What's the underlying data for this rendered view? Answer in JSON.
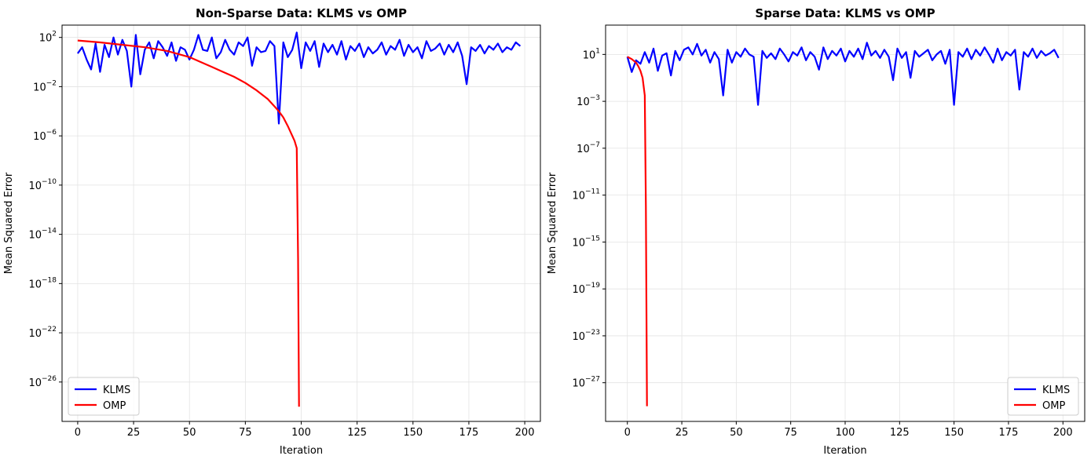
{
  "chart_data": [
    {
      "type": "line",
      "title": "Non-Sparse Data: KLMS vs OMP",
      "xlabel": "Iteration",
      "ylabel": "Mean Squared Error",
      "yscale": "log",
      "xlim": [
        -7,
        207
      ],
      "ylim_exp": [
        -29.2,
        3.0
      ],
      "xticks": [
        0,
        25,
        50,
        75,
        100,
        125,
        150,
        175,
        200
      ],
      "yticks_exp": [
        2,
        -2,
        -6,
        -10,
        -14,
        -18,
        -22,
        -26
      ],
      "grid": true,
      "legend": "lower left",
      "series": [
        {
          "name": "KLMS",
          "color": "#0000ff",
          "x": [
            0,
            2,
            4,
            6,
            8,
            10,
            12,
            14,
            16,
            18,
            20,
            22,
            24,
            26,
            28,
            30,
            32,
            34,
            36,
            38,
            40,
            42,
            44,
            46,
            48,
            50,
            52,
            54,
            56,
            58,
            60,
            62,
            64,
            66,
            68,
            70,
            72,
            74,
            76,
            78,
            80,
            82,
            84,
            86,
            88,
            90,
            92,
            94,
            96,
            98,
            100,
            102,
            104,
            106,
            108,
            110,
            112,
            114,
            116,
            118,
            120,
            122,
            124,
            126,
            128,
            130,
            132,
            134,
            136,
            138,
            140,
            142,
            144,
            146,
            148,
            150,
            152,
            154,
            156,
            158,
            160,
            162,
            164,
            166,
            168,
            170,
            172,
            174,
            176,
            178,
            180,
            182,
            184,
            186,
            188,
            190,
            192,
            194,
            196,
            198
          ],
          "y_log10": [
            0.7,
            1.2,
            0.2,
            -0.6,
            1.5,
            -0.8,
            1.4,
            0.4,
            2.0,
            0.6,
            1.8,
            0.9,
            -2.0,
            2.2,
            -1.0,
            1.0,
            1.6,
            0.3,
            1.7,
            1.2,
            0.5,
            1.6,
            0.1,
            1.2,
            1.0,
            0.2,
            1.0,
            2.2,
            1.0,
            0.9,
            2.0,
            0.3,
            0.8,
            1.8,
            1.0,
            0.6,
            1.6,
            1.3,
            2.0,
            -0.3,
            1.2,
            0.8,
            0.9,
            1.7,
            1.3,
            -5.0,
            1.6,
            0.4,
            1.0,
            2.4,
            -0.5,
            1.6,
            0.9,
            1.7,
            -0.4,
            1.5,
            0.8,
            1.4,
            0.6,
            1.7,
            0.2,
            1.3,
            0.9,
            1.5,
            0.4,
            1.2,
            0.7,
            1.0,
            1.6,
            0.6,
            1.3,
            1.0,
            1.8,
            0.5,
            1.4,
            0.8,
            1.2,
            0.3,
            1.7,
            0.9,
            1.1,
            1.5,
            0.6,
            1.4,
            0.8,
            1.6,
            0.5,
            -1.8,
            1.2,
            0.9,
            1.4,
            0.7,
            1.3,
            1.0,
            1.5,
            0.8,
            1.2,
            1.0,
            1.6,
            1.3
          ]
        },
        {
          "name": "OMP",
          "color": "#ff0000",
          "x": [
            0,
            10,
            20,
            30,
            40,
            50,
            55,
            60,
            65,
            70,
            75,
            80,
            85,
            88,
            90,
            92,
            94,
            95,
            96,
            97,
            98,
            98.6,
            99
          ],
          "y_log10": [
            1.75,
            1.6,
            1.4,
            1.2,
            0.9,
            0.4,
            0.0,
            -0.4,
            -0.8,
            -1.2,
            -1.7,
            -2.3,
            -3.0,
            -3.6,
            -4.0,
            -4.5,
            -5.2,
            -5.6,
            -6.0,
            -6.4,
            -7.0,
            -16.0,
            -28.0
          ]
        }
      ]
    },
    {
      "type": "line",
      "title": "Sparse Data: KLMS vs OMP",
      "xlabel": "Iteration",
      "ylabel": "Mean Squared Error",
      "yscale": "log",
      "xlim": [
        -10,
        210
      ],
      "ylim_exp": [
        -30.3,
        3.5
      ],
      "xticks": [
        0,
        25,
        50,
        75,
        100,
        125,
        150,
        175,
        200
      ],
      "yticks_exp": [
        1,
        -3,
        -7,
        -11,
        -15,
        -19,
        -23,
        -27
      ],
      "grid": true,
      "legend": "lower right",
      "series": [
        {
          "name": "KLMS",
          "color": "#0000ff",
          "x": [
            0,
            2,
            4,
            6,
            8,
            10,
            12,
            14,
            16,
            18,
            20,
            22,
            24,
            26,
            28,
            30,
            32,
            34,
            36,
            38,
            40,
            42,
            44,
            46,
            48,
            50,
            52,
            54,
            56,
            58,
            60,
            62,
            64,
            66,
            68,
            70,
            72,
            74,
            76,
            78,
            80,
            82,
            84,
            86,
            88,
            90,
            92,
            94,
            96,
            98,
            100,
            102,
            104,
            106,
            108,
            110,
            112,
            114,
            116,
            118,
            120,
            122,
            124,
            126,
            128,
            130,
            132,
            134,
            136,
            138,
            140,
            142,
            144,
            146,
            148,
            150,
            152,
            154,
            156,
            158,
            160,
            162,
            164,
            166,
            168,
            170,
            172,
            174,
            176,
            178,
            180,
            182,
            184,
            186,
            188,
            190,
            192,
            194,
            196,
            198
          ],
          "y_log10": [
            0.8,
            -0.5,
            0.5,
            0.2,
            1.2,
            0.3,
            1.5,
            -0.4,
            0.9,
            1.1,
            -0.8,
            1.3,
            0.5,
            1.4,
            1.6,
            1.0,
            1.9,
            0.9,
            1.4,
            0.3,
            1.2,
            0.6,
            -2.5,
            1.4,
            0.3,
            1.2,
            0.8,
            1.5,
            1.0,
            0.8,
            -3.3,
            1.3,
            0.7,
            1.1,
            0.6,
            1.5,
            1.0,
            0.4,
            1.2,
            0.9,
            1.6,
            0.5,
            1.2,
            0.8,
            -0.3,
            1.6,
            0.6,
            1.3,
            0.9,
            1.5,
            0.4,
            1.3,
            0.8,
            1.5,
            0.6,
            2.0,
            0.9,
            1.3,
            0.7,
            1.4,
            0.8,
            -1.2,
            1.5,
            0.7,
            1.2,
            -1.0,
            1.3,
            0.8,
            1.1,
            1.4,
            0.5,
            1.0,
            1.3,
            0.2,
            1.4,
            -3.3,
            1.2,
            0.8,
            1.5,
            0.6,
            1.4,
            0.9,
            1.6,
            1.0,
            0.3,
            1.5,
            0.5,
            1.2,
            0.9,
            1.4,
            -2.0,
            1.2,
            0.8,
            1.5,
            0.7,
            1.3,
            0.9,
            1.1,
            1.4,
            0.7
          ]
        },
        {
          "name": "OMP",
          "color": "#ff0000",
          "x": [
            0,
            2,
            4,
            5,
            6,
            7,
            8,
            8.5,
            9
          ],
          "y_log10": [
            0.8,
            0.6,
            0.3,
            0.0,
            -0.4,
            -1.0,
            -2.5,
            -12.0,
            -29.0
          ]
        }
      ]
    }
  ]
}
